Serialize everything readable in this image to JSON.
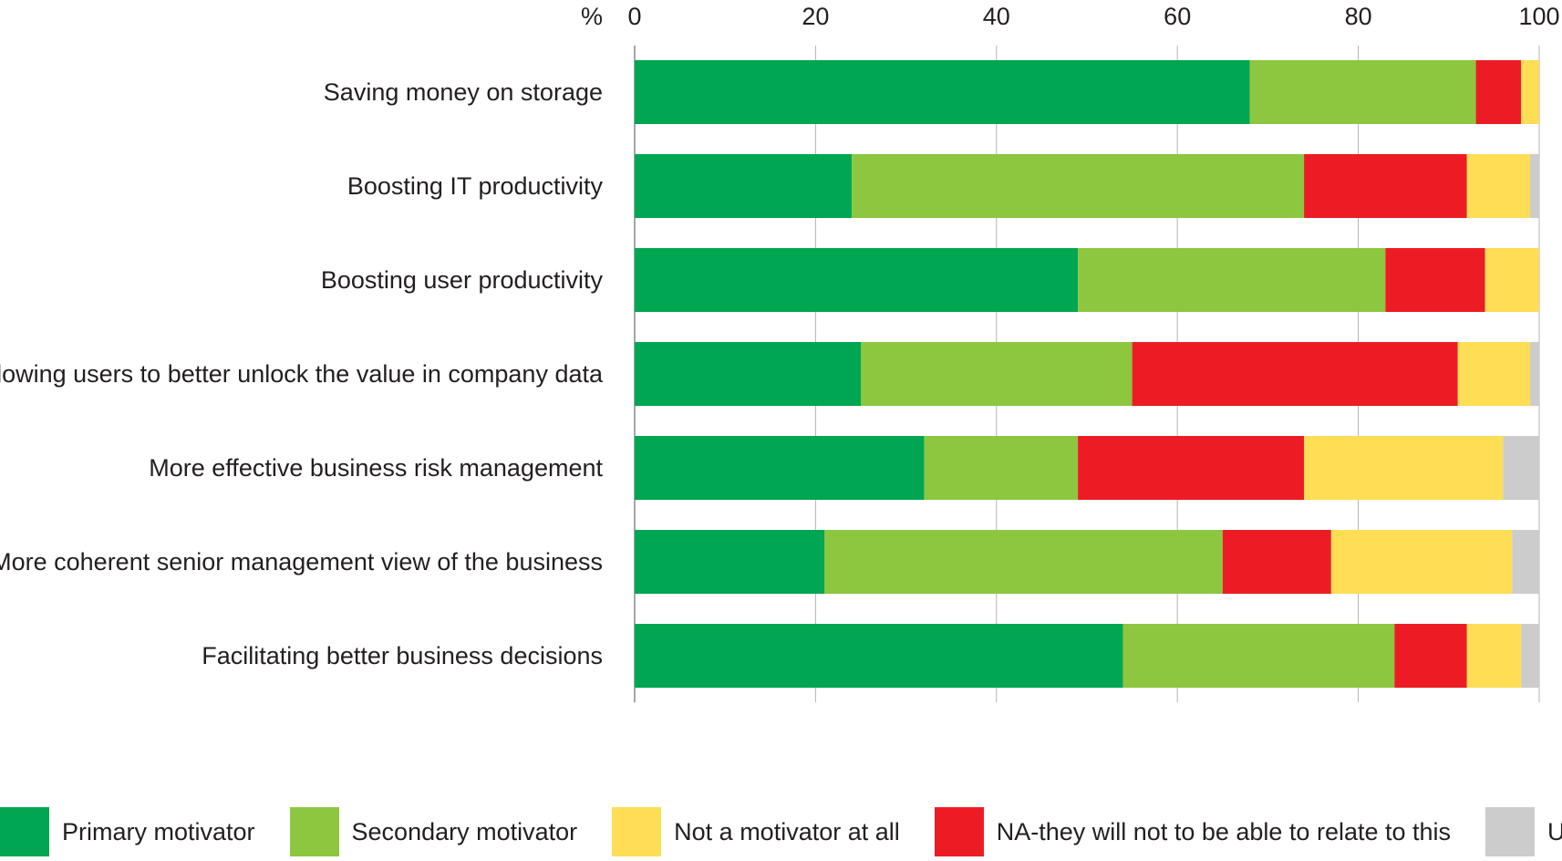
{
  "chart_data": {
    "type": "bar",
    "orientation": "horizontal",
    "stacked": true,
    "axis_unit_label": "%",
    "xlim": [
      0,
      100
    ],
    "ticks": [
      0,
      20,
      40,
      60,
      80,
      100
    ],
    "grid": true,
    "legend_position": "bottom",
    "categories": [
      "Saving money on storage",
      "Boosting IT productivity",
      "Boosting user productivity",
      "Allowing users to better unlock the value in company data",
      "More effective business risk management",
      "More coherent senior management view of the business",
      "Facilitating better business decisions"
    ],
    "series": [
      {
        "name": "Primary motivator",
        "color": "#00a651",
        "values": [
          68,
          24,
          49,
          25,
          32,
          21,
          54
        ]
      },
      {
        "name": "Secondary motivator",
        "color": "#8dc63f",
        "values": [
          25,
          50,
          34,
          30,
          17,
          44,
          30
        ]
      },
      {
        "name": "NA-they will not to be able to relate to this",
        "color": "#ed1c24",
        "values": [
          5,
          18,
          11,
          36,
          25,
          12,
          8
        ]
      },
      {
        "name": "Not a motivator at all",
        "color": "#ffdd55",
        "values": [
          2,
          7,
          6,
          8,
          22,
          20,
          6
        ]
      },
      {
        "name": "Unsure",
        "color": "#cccccc",
        "values": [
          0,
          1,
          0,
          1,
          4,
          3,
          2
        ]
      }
    ],
    "legend": [
      {
        "name": "Primary motivator",
        "color": "#00a651"
      },
      {
        "name": "Secondary motivator",
        "color": "#8dc63f"
      },
      {
        "name": "Not a motivator at all",
        "color": "#ffdd55"
      },
      {
        "name": "NA-they will not to be able to relate to this",
        "color": "#ed1c24"
      },
      {
        "name": "Unsure",
        "color": "#cccccc"
      }
    ]
  }
}
